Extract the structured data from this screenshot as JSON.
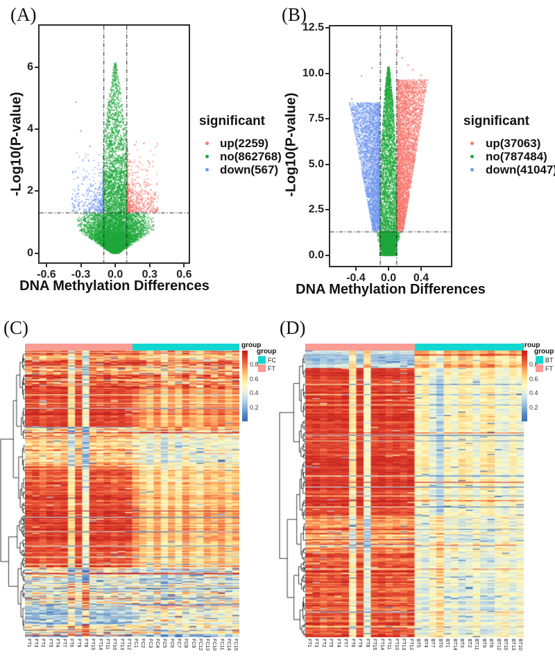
{
  "panels": {
    "a": {
      "label": "(A)",
      "y_title": "-Log10(P-value)",
      "x_title": "DNA Methylation Differences",
      "x_ticks": [
        "-0.6",
        "-0.3",
        "0.0",
        "0.3",
        "0.6"
      ],
      "y_ticks": [
        "0",
        "2",
        "4",
        "6"
      ],
      "legend": {
        "title": "significant",
        "items": [
          {
            "label": "up(2259)",
            "color": "#F8766D"
          },
          {
            "label": "no(862768)",
            "color": "#1FA83C"
          },
          {
            "label": "down(567)",
            "color": "#6F96EE"
          }
        ]
      }
    },
    "b": {
      "label": "(B)",
      "y_title": "-Log10(P-value)",
      "x_title": "DNA Methylation Differences",
      "x_ticks": [
        "-0.4",
        "0.0",
        "0.4"
      ],
      "y_ticks": [
        "0.0",
        "2.5",
        "5.0",
        "7.5",
        "10.0",
        "12.5"
      ],
      "legend": {
        "title": "significant",
        "items": [
          {
            "label": "up(37063)",
            "color": "#F8766D"
          },
          {
            "label": "no(787484)",
            "color": "#1FA83C"
          },
          {
            "label": "down(41047)",
            "color": "#6F96EE"
          }
        ]
      }
    },
    "c": {
      "label": "(C)",
      "strip_title": "group",
      "legend": {
        "title": "group",
        "items": [
          {
            "label": "FC",
            "color": "#12D6D0"
          },
          {
            "label": "FT",
            "color": "#F99C94"
          }
        ]
      },
      "colorbar_ticks": [
        "0.8",
        "0.6",
        "0.4",
        "0.2"
      ],
      "columns": [
        "FT1",
        "FT3",
        "FT2",
        "FT5",
        "FT4",
        "FT7",
        "FT6",
        "FT9",
        "FT8",
        "FT15",
        "FT14",
        "FT11",
        "FT10",
        "FT13",
        "FT12",
        "FC1",
        "FC2",
        "FC3",
        "FC4",
        "FC5",
        "FC6",
        "FC7",
        "FC8",
        "FC9",
        "FC12",
        "FC13",
        "FC10",
        "FC11",
        "FC14",
        "FC15"
      ]
    },
    "d": {
      "label": "(D)",
      "strip_title": "group",
      "legend": {
        "title": "group",
        "items": [
          {
            "label": "BT",
            "color": "#12D6D0"
          },
          {
            "label": "FT",
            "color": "#F99C94"
          }
        ]
      },
      "colorbar_ticks": [
        "0.8",
        "0.6",
        "0.4",
        "0.2"
      ],
      "columns": [
        "FT1",
        "FT3",
        "FT2",
        "FT5",
        "FT4",
        "FT7",
        "FT6",
        "FT9",
        "FT8",
        "FT15",
        "FT14",
        "FT11",
        "FT10",
        "FT13",
        "FT12",
        "BT5",
        "BT4",
        "BT7",
        "BT6",
        "BT1",
        "BT14",
        "BT3",
        "BT2",
        "BT11",
        "BT9",
        "BT8",
        "BT12",
        "BT15",
        "BT13",
        "BT10"
      ]
    }
  },
  "chart_data": [
    {
      "id": "volcano_a",
      "type": "scatter",
      "subtype": "volcano",
      "xlabel": "DNA Methylation Differences",
      "ylabel": "-Log10(P-value)",
      "xlim": [
        -0.66,
        0.64
      ],
      "ylim": [
        -0.3,
        7.35
      ],
      "x_tick_vals": [
        -0.6,
        -0.3,
        0.0,
        0.3,
        0.6
      ],
      "y_tick_vals": [
        0,
        2,
        4,
        6
      ],
      "threshold_x": [
        -0.1,
        0.1
      ],
      "threshold_y": 1.3,
      "series": [
        {
          "name": "up",
          "count": 2259,
          "color": "#F8766D"
        },
        {
          "name": "no",
          "count": 862768,
          "color": "#1FA83C"
        },
        {
          "name": "down",
          "count": 567,
          "color": "#6F96EE"
        }
      ],
      "render": {
        "seed": 7,
        "lobes": false,
        "n_no": 9500,
        "n_up": 520,
        "n_down": 360,
        "apex": 6.15,
        "bulge_frac": 0.52,
        "bulge_decay": 0.55,
        "col_decay": 1.9,
        "knee": 1.05,
        "wide_max": 0.355,
        "wide_slope": 0.42,
        "col_w": 0.107,
        "taper_start": 3.7,
        "taper_len": 2.7,
        "up_params": {
          "decay": 0.55,
          "cap": 3.6,
          "wpow": 2.2,
          "wmax": 0.265
        },
        "down_params": {
          "decay": 0.5,
          "cap": 3.3,
          "wpow": 2.0,
          "wmax": 0.27
        },
        "up_outliers": [
          [
            0.25,
            3.55
          ],
          [
            0.17,
            3.5
          ],
          [
            0.3,
            2.9
          ]
        ],
        "down_outliers": [
          [
            -0.34,
            4.88
          ],
          [
            -0.3,
            3.95
          ],
          [
            -0.22,
            3.45
          ],
          [
            -0.37,
            2.6
          ]
        ]
      }
    },
    {
      "id": "volcano_b",
      "type": "scatter",
      "subtype": "volcano",
      "xlabel": "DNA Methylation Differences",
      "ylabel": "-Log10(P-value)",
      "xlim": [
        -0.715,
        0.766
      ],
      "ylim": [
        -0.57,
        12.58
      ],
      "x_tick_vals": [
        -0.4,
        0.0,
        0.4
      ],
      "y_tick_vals": [
        0,
        2.5,
        5,
        7.5,
        10,
        12.5
      ],
      "threshold_x": [
        -0.1,
        0.1
      ],
      "threshold_y": 1.3,
      "series": [
        {
          "name": "up",
          "count": 37063,
          "color": "#F8766D"
        },
        {
          "name": "no",
          "count": 787484,
          "color": "#1FA83C"
        },
        {
          "name": "down",
          "count": 41047,
          "color": "#6F96EE"
        }
      ],
      "render": {
        "seed": 11,
        "lobes": true,
        "n_no": 7000,
        "n_up": 5200,
        "n_down": 4300,
        "apex": 10.35,
        "bulge_frac": 0.45,
        "bulge_decay": 0.8,
        "diamond_w": 0.165,
        "col_w": 0.107,
        "col_pow": 1.35,
        "up_params": {
          "ymax": 8.3,
          "ypow": 0.95,
          "w0": 0.028,
          "wslope": 0.036,
          "wpow": 1.35
        },
        "down_params": {
          "ymax": 7.05,
          "ypow": 0.92,
          "w0": 0.03,
          "wslope": 0.041,
          "wpow": 1.45
        },
        "up_outliers": [
          [
            0.12,
            11.2
          ],
          [
            0.17,
            10.85
          ],
          [
            0.24,
            10.45
          ],
          [
            0.3,
            10.2
          ],
          [
            0.4,
            9.9
          ]
        ],
        "down_outliers": [
          [
            -0.2,
            10.3
          ],
          [
            -0.33,
            9.85
          ],
          [
            -0.45,
            8.6
          ]
        ]
      }
    },
    {
      "id": "heatmap_c",
      "type": "heatmap",
      "rows": 360,
      "seed": 21,
      "primary": "FT",
      "groups": [
        "FT",
        "FT",
        "FT",
        "FT",
        "FT",
        "FT",
        "FT",
        "FT",
        "FT",
        "FT",
        "FT",
        "FT",
        "FT",
        "FT",
        "FT",
        "FC",
        "FC",
        "FC",
        "FC",
        "FC",
        "FC",
        "FC",
        "FC",
        "FC",
        "FC",
        "FC",
        "FC",
        "FC",
        "FC",
        "FC"
      ],
      "group_colors": {
        "FT": "#F99C94",
        "FC": "#12D6D0"
      },
      "colorbar_tick_vals": [
        0.8,
        0.6,
        0.4,
        0.2
      ],
      "palette": [
        [
          0,
          "#3B6CB4"
        ],
        [
          0.1,
          "#5486C6"
        ],
        [
          0.22,
          "#92B8DC"
        ],
        [
          0.35,
          "#CDE4E9"
        ],
        [
          0.45,
          "#F0F4D4"
        ],
        [
          0.52,
          "#FEFABE"
        ],
        [
          0.62,
          "#FEE090"
        ],
        [
          0.72,
          "#FDAE61"
        ],
        [
          0.82,
          "#F46D43"
        ],
        [
          0.92,
          "#DE3C2A"
        ],
        [
          1,
          "#C01A1B"
        ]
      ],
      "col_offsets": [
        0,
        0.02,
        -0.04,
        0.01,
        -0.02,
        0.02,
        -0.3,
        0.01,
        -0.42,
        0.01,
        -0.01,
        0.02,
        -0.02,
        0.01,
        -0.01,
        -0.02,
        -0.1,
        -0.18,
        -0.06,
        -0.22,
        -0.08,
        -0.2,
        -0.04,
        -0.12,
        -0.18,
        -0.06,
        -0.1,
        -0.04,
        -0.14,
        -0.08
      ],
      "row_blocks": [
        {
          "f": 0.034,
          "a": 0.8,
          "b": 0.82,
          "n": 0.3
        },
        {
          "f": 0.098,
          "a": 0.76,
          "b": 0.78,
          "n": 0.34
        },
        {
          "f": 0.135,
          "a": 0.92,
          "b": 0.86,
          "n": 0.1
        },
        {
          "f": 0.02,
          "a": 0.5,
          "b": 0.46,
          "n": 0.32
        },
        {
          "f": 0.115,
          "a": 0.7,
          "b": 0.63,
          "n": 0.22
        },
        {
          "f": 0.062,
          "a": 0.84,
          "b": 0.72,
          "n": 0.16
        },
        {
          "f": 0.295,
          "a": 0.9,
          "b": 0.78,
          "n": 0.13
        },
        {
          "f": 0.048,
          "a": 0.55,
          "b": 0.56,
          "n": 0.36
        },
        {
          "f": 0.083,
          "a": 0.4,
          "b": 0.5,
          "n": 0.32
        },
        {
          "f": 0.065,
          "a": 0.3,
          "b": 0.42,
          "n": 0.26
        },
        {
          "f": 0.045,
          "a": 0.46,
          "b": 0.52,
          "n": 0.36
        }
      ]
    },
    {
      "id": "heatmap_d",
      "type": "heatmap",
      "rows": 360,
      "seed": 33,
      "primary": "FT",
      "groups": [
        "FT",
        "FT",
        "FT",
        "FT",
        "FT",
        "FT",
        "FT",
        "FT",
        "FT",
        "FT",
        "FT",
        "FT",
        "FT",
        "FT",
        "FT",
        "BT",
        "BT",
        "BT",
        "BT",
        "BT",
        "BT",
        "BT",
        "BT",
        "BT",
        "BT",
        "BT",
        "BT",
        "BT",
        "BT",
        "BT"
      ],
      "group_colors": {
        "FT": "#F99C94",
        "BT": "#12D6D0"
      },
      "colorbar_tick_vals": [
        0.8,
        0.6,
        0.4,
        0.2
      ],
      "palette": [
        [
          0,
          "#3B6CB4"
        ],
        [
          0.1,
          "#5486C6"
        ],
        [
          0.22,
          "#92B8DC"
        ],
        [
          0.35,
          "#CDE4E9"
        ],
        [
          0.45,
          "#F0F4D4"
        ],
        [
          0.52,
          "#FEFABE"
        ],
        [
          0.62,
          "#FEE090"
        ],
        [
          0.72,
          "#FDAE61"
        ],
        [
          0.82,
          "#F46D43"
        ],
        [
          0.92,
          "#DE3C2A"
        ],
        [
          1,
          "#C01A1B"
        ]
      ],
      "col_offsets": [
        0,
        0.02,
        -0.02,
        0.01,
        -0.01,
        0.02,
        -0.34,
        0.01,
        -0.44,
        0,
        0.02,
        -0.02,
        0.01,
        -0.02,
        0.01,
        0,
        0.05,
        -0.1,
        -0.22,
        0.02,
        -0.06,
        0.07,
        0.03,
        -0.08,
        0.05,
        0.08,
        -0.05,
        -0.09,
        0.02,
        -0.06
      ],
      "row_blocks": [
        {
          "f": 0.06,
          "a": 0.3,
          "b": 0.66,
          "n": 0.14
        },
        {
          "f": 0.515,
          "a": 0.92,
          "b": 0.52,
          "n": 0.11
        },
        {
          "f": 0.132,
          "a": 0.74,
          "b": 0.46,
          "n": 0.18
        },
        {
          "f": 0.293,
          "a": 0.87,
          "b": 0.44,
          "n": 0.15
        }
      ]
    }
  ]
}
